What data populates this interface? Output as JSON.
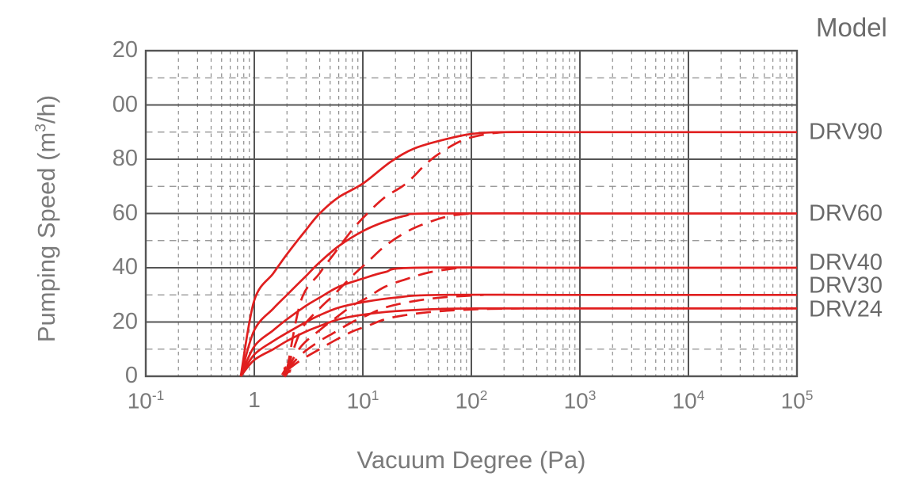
{
  "colors": {
    "curve": "#e01f1f",
    "grid_major": "#555555",
    "grid_minor": "#8d8d8d",
    "tick_text": "#7a7a7a",
    "label_text": "#696969",
    "background": "#ffffff"
  },
  "chart_data": {
    "type": "line",
    "title": "Model",
    "xlabel": "Vacuum Degree (Pa)",
    "ylabel_pre": "Pumping Speed (m",
    "ylabel_sup": "3",
    "ylabel_post": "/h)",
    "x_scale": "log10",
    "xlim": [
      0.1,
      100000
    ],
    "ylim": [
      0,
      120
    ],
    "grid": {
      "major_solid": true,
      "minor_dashed": true,
      "legend_position": "right"
    },
    "x_ticks": [
      {
        "base": "10",
        "exp": "-1",
        "value": 0.1
      },
      {
        "base": "1",
        "exp": "",
        "value": 1
      },
      {
        "base": "10",
        "exp": "1",
        "value": 10
      },
      {
        "base": "10",
        "exp": "2",
        "value": 100
      },
      {
        "base": "10",
        "exp": "3",
        "value": 1000
      },
      {
        "base": "10",
        "exp": "4",
        "value": 10000
      },
      {
        "base": "10",
        "exp": "5",
        "value": 100000
      }
    ],
    "y_ticks": [
      {
        "label": "20",
        "value": 120
      },
      {
        "label": "00",
        "value": 100
      },
      {
        "label": "80",
        "value": 80
      },
      {
        "label": "60",
        "value": 60
      },
      {
        "label": "40",
        "value": 40
      },
      {
        "label": "20",
        "value": 20
      },
      {
        "label": "0",
        "value": 0
      }
    ],
    "y_minor_values": [
      10,
      30,
      50,
      70,
      90,
      110
    ],
    "models": [
      {
        "label": "DRV90",
        "plateau": 90
      },
      {
        "label": "DRV60",
        "plateau": 60
      },
      {
        "label": "DRV40",
        "plateau": 40
      },
      {
        "label": "DRV30",
        "plateau": 30
      },
      {
        "label": "DRV24",
        "plateau": 25
      }
    ],
    "series": [
      {
        "name": "DRV90 solid",
        "model": "DRV90",
        "style": "solid",
        "arrow_at_start": false,
        "points": [
          [
            0.75,
            0
          ],
          [
            1,
            28
          ],
          [
            1.5,
            38
          ],
          [
            2,
            45
          ],
          [
            3,
            54
          ],
          [
            4,
            60
          ],
          [
            6,
            66
          ],
          [
            10,
            71
          ],
          [
            18,
            79
          ],
          [
            30,
            84
          ],
          [
            60,
            87.5
          ],
          [
            100,
            89.3
          ],
          [
            200,
            90
          ],
          [
            1000,
            90
          ],
          [
            10000,
            90
          ],
          [
            100000,
            90
          ]
        ]
      },
      {
        "name": "DRV90 dashed",
        "model": "DRV90",
        "style": "dashed",
        "arrow_at_start": true,
        "points": [
          [
            2,
            2.2
          ],
          [
            2.7,
            28
          ],
          [
            4,
            38
          ],
          [
            5.4,
            45
          ],
          [
            8,
            54
          ],
          [
            11,
            60
          ],
          [
            16,
            66
          ],
          [
            25,
            71
          ],
          [
            40,
            79
          ],
          [
            60,
            84
          ],
          [
            90,
            87.5
          ],
          [
            140,
            89.3
          ],
          [
            200,
            90
          ]
        ]
      },
      {
        "name": "DRV60 solid",
        "model": "DRV60",
        "style": "solid",
        "arrow_at_start": false,
        "points": [
          [
            0.75,
            0
          ],
          [
            1,
            17
          ],
          [
            1.5,
            25
          ],
          [
            2,
            30
          ],
          [
            3,
            37
          ],
          [
            4,
            42
          ],
          [
            6,
            48
          ],
          [
            10,
            53.5
          ],
          [
            16,
            57
          ],
          [
            25,
            59.2
          ],
          [
            40,
            60
          ],
          [
            1000,
            60
          ],
          [
            10000,
            60
          ],
          [
            100000,
            60
          ]
        ]
      },
      {
        "name": "DRV60 dashed",
        "model": "DRV60",
        "style": "dashed",
        "arrow_at_start": true,
        "points": [
          [
            2,
            2.2
          ],
          [
            2.7,
            17
          ],
          [
            4,
            25
          ],
          [
            5.4,
            30
          ],
          [
            8,
            37
          ],
          [
            11,
            42
          ],
          [
            16,
            48
          ],
          [
            26,
            53.5
          ],
          [
            42,
            57
          ],
          [
            65,
            59.2
          ],
          [
            100,
            60
          ]
        ]
      },
      {
        "name": "DRV40 solid",
        "model": "DRV40",
        "style": "solid",
        "arrow_at_start": false,
        "points": [
          [
            0.75,
            0
          ],
          [
            1,
            11
          ],
          [
            1.5,
            17
          ],
          [
            2,
            21
          ],
          [
            3,
            26
          ],
          [
            4,
            29
          ],
          [
            6,
            33
          ],
          [
            10,
            36
          ],
          [
            16,
            38.4
          ],
          [
            30,
            40
          ],
          [
            1000,
            40
          ],
          [
            10000,
            40
          ],
          [
            100000,
            40
          ]
        ]
      },
      {
        "name": "DRV40 dashed",
        "model": "DRV40",
        "style": "dashed",
        "arrow_at_start": true,
        "points": [
          [
            2,
            2.2
          ],
          [
            2.7,
            11
          ],
          [
            4,
            17
          ],
          [
            5.4,
            21
          ],
          [
            8,
            26
          ],
          [
            11,
            29
          ],
          [
            16,
            33
          ],
          [
            26,
            36
          ],
          [
            42,
            38.4
          ],
          [
            78,
            40
          ]
        ]
      },
      {
        "name": "DRV30 solid",
        "model": "DRV30",
        "style": "solid",
        "arrow_at_start": false,
        "points": [
          [
            0.75,
            0
          ],
          [
            1,
            8
          ],
          [
            1.5,
            13
          ],
          [
            2,
            16
          ],
          [
            3,
            20
          ],
          [
            4,
            22.5
          ],
          [
            6,
            25.3
          ],
          [
            10,
            27.3
          ],
          [
            20,
            29
          ],
          [
            50,
            30
          ],
          [
            1000,
            30
          ],
          [
            10000,
            30
          ],
          [
            100000,
            30
          ]
        ]
      },
      {
        "name": "DRV30 dashed",
        "model": "DRV30",
        "style": "dashed",
        "arrow_at_start": true,
        "points": [
          [
            2,
            2.2
          ],
          [
            2.7,
            8
          ],
          [
            4,
            13
          ],
          [
            5.4,
            16
          ],
          [
            8,
            20
          ],
          [
            11,
            22.5
          ],
          [
            16,
            25.3
          ],
          [
            26,
            27.3
          ],
          [
            52,
            29
          ],
          [
            130,
            30
          ]
        ]
      },
      {
        "name": "DRV24 solid",
        "model": "DRV24",
        "style": "solid",
        "arrow_at_start": false,
        "points": [
          [
            0.75,
            0
          ],
          [
            1,
            6
          ],
          [
            1.5,
            10
          ],
          [
            2,
            13
          ],
          [
            3,
            16.5
          ],
          [
            4,
            18.5
          ],
          [
            6,
            21
          ],
          [
            10,
            22.7
          ],
          [
            20,
            24
          ],
          [
            50,
            24.8
          ],
          [
            110,
            25
          ],
          [
            1000,
            25
          ],
          [
            10000,
            25
          ],
          [
            100000,
            25
          ]
        ]
      },
      {
        "name": "DRV24 dashed",
        "model": "DRV24",
        "style": "dashed",
        "arrow_at_start": true,
        "points": [
          [
            2,
            2.2
          ],
          [
            2.7,
            6
          ],
          [
            4,
            10
          ],
          [
            5.4,
            13
          ],
          [
            8,
            16.5
          ],
          [
            11,
            18.5
          ],
          [
            16,
            21
          ],
          [
            26,
            22.7
          ],
          [
            52,
            24
          ],
          [
            130,
            24.8
          ],
          [
            280,
            25
          ]
        ]
      }
    ]
  }
}
